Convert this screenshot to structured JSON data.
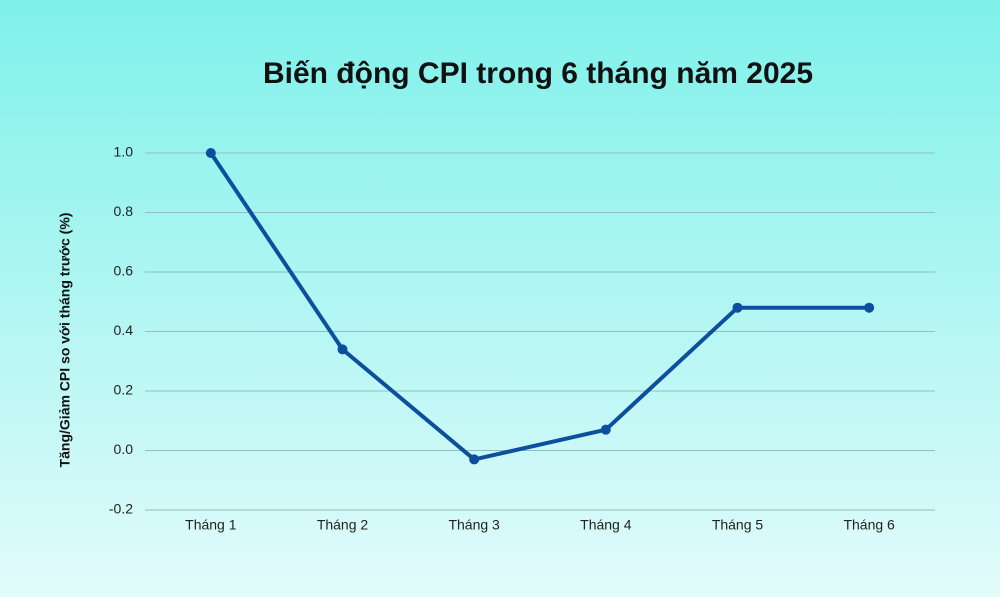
{
  "chart_data": {
    "type": "line",
    "title": "Biến động CPI trong 6 tháng năm 2025",
    "y_label": "Tăng/Giảm CPI so với tháng trước (%)",
    "categories": [
      "Tháng 1",
      "Tháng 2",
      "Tháng 3",
      "Tháng 4",
      "Tháng 5",
      "Tháng 6"
    ],
    "values": [
      1.0,
      0.34,
      -0.03,
      0.07,
      0.48,
      0.48
    ],
    "color": "#0b4f9e",
    "ylim": [
      -0.2,
      1.0
    ],
    "yticks": [
      {
        "value": 1,
        "label": "1.0"
      },
      0.8,
      0.6,
      0.4,
      0.2,
      {
        "value": 0,
        "label": "0.0"
      },
      -0.2
    ],
    "grid": true
  }
}
